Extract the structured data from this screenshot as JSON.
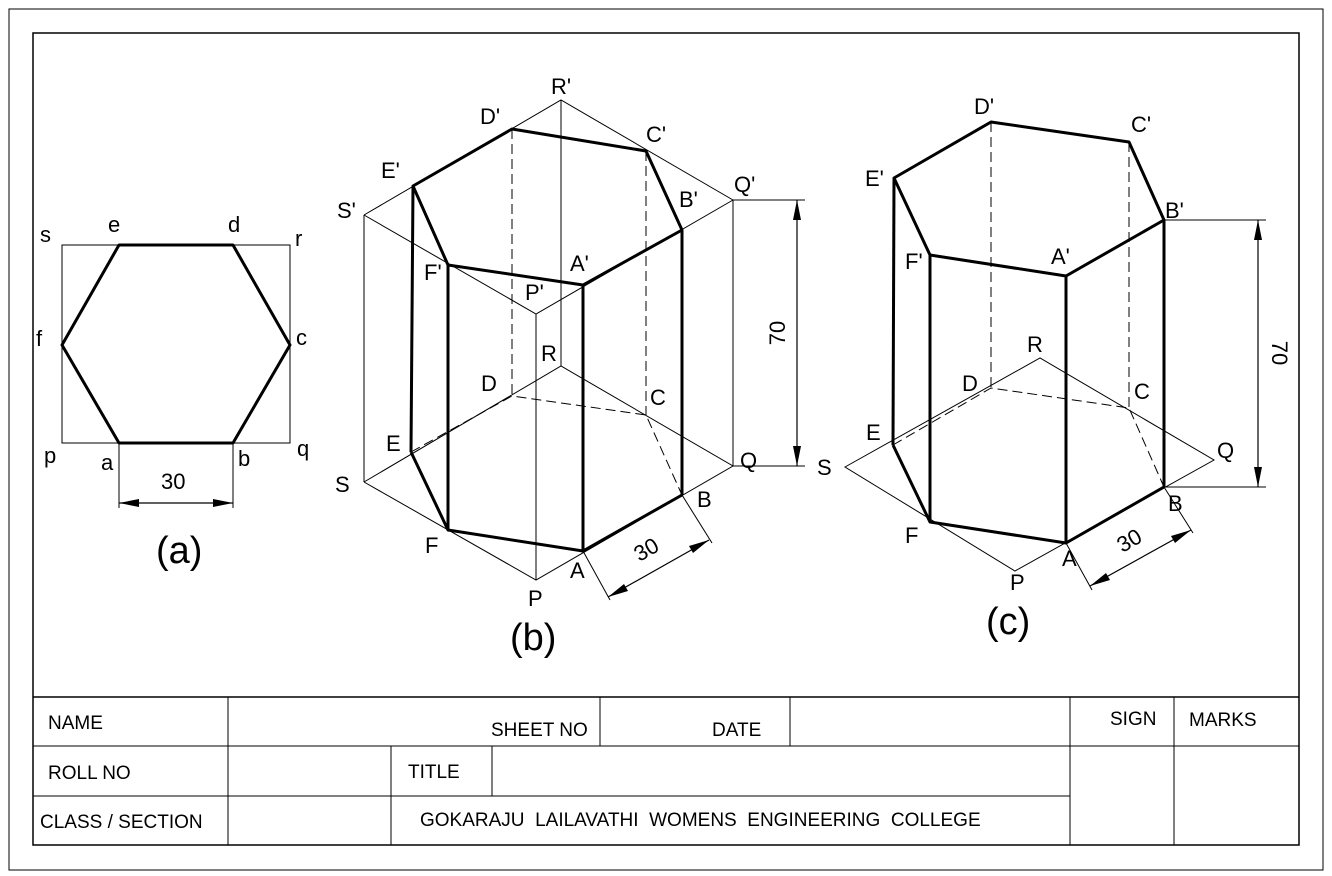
{
  "figure_a": {
    "caption": "(a)",
    "labels": {
      "s": "s",
      "e": "e",
      "d": "d",
      "r": "r",
      "f": "f",
      "c": "c",
      "p": "p",
      "a": "a",
      "b": "b",
      "q": "q"
    },
    "dimension": "30"
  },
  "figure_b": {
    "caption": "(b)",
    "labels": {
      "R1": "R'",
      "D1": "D'",
      "C1": "C'",
      "E1": "E'",
      "Q1": "Q'",
      "B1": "B'",
      "S1": "S'",
      "F1": "F'",
      "A1": "A'",
      "P1": "P'",
      "R": "R",
      "D": "D",
      "C": "C",
      "E": "E",
      "Q": "Q",
      "S": "S",
      "B": "B",
      "F": "F",
      "A": "A",
      "P": "P"
    },
    "height_dimension": "70",
    "side_dimension": "30"
  },
  "figure_c": {
    "caption": "(c)",
    "labels": {
      "D1": "D'",
      "C1": "C'",
      "E1": "E'",
      "B1": "B'",
      "F1": "F'",
      "A1": "A'",
      "R": "R",
      "D": "D",
      "C": "C",
      "E": "E",
      "Q": "Q",
      "S": "S",
      "B": "B",
      "F": "F",
      "A": "A",
      "P": "P"
    },
    "height_dimension": "70",
    "side_dimension": "30"
  },
  "title_block": {
    "name": "NAME",
    "sheet_no": "SHEET NO",
    "date": "DATE",
    "sign": "SIGN",
    "marks": "MARKS",
    "roll_no": "ROLL NO",
    "title": "TITLE",
    "class_section": "CLASS / SECTION",
    "college": "GOKARAJU  LAILAVATHI  WOMENS  ENGINEERING  COLLEGE"
  }
}
